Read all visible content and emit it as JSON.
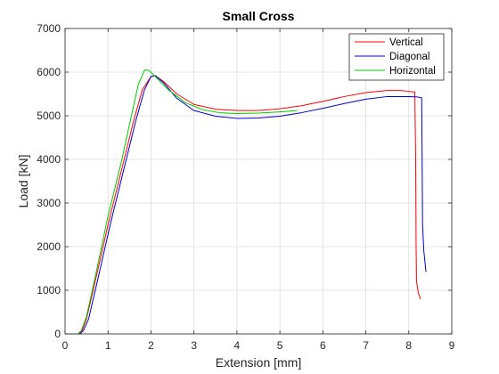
{
  "chart_data": {
    "type": "line",
    "title": "Small Cross",
    "xlabel": "Extension [mm]",
    "ylabel": "Load [kN]",
    "xlim": [
      0,
      9
    ],
    "ylim": [
      0,
      7000
    ],
    "xticks": [
      "0",
      "1",
      "2",
      "3",
      "4",
      "5",
      "6",
      "7",
      "8",
      "9"
    ],
    "yticks": [
      "0",
      "1000",
      "2000",
      "3000",
      "4000",
      "5000",
      "6000",
      "7000"
    ],
    "grid": true,
    "legend_position": "top-right",
    "series": [
      {
        "name": "Vertical",
        "color": "#ff0000",
        "points": [
          [
            0,
            0
          ],
          [
            0.32,
            0
          ],
          [
            0.4,
            80
          ],
          [
            0.5,
            350
          ],
          [
            0.7,
            1200
          ],
          [
            1.0,
            2500
          ],
          [
            1.3,
            3700
          ],
          [
            1.6,
            4900
          ],
          [
            1.8,
            5600
          ],
          [
            2.0,
            5900
          ],
          [
            2.1,
            5920
          ],
          [
            2.3,
            5780
          ],
          [
            2.6,
            5500
          ],
          [
            3.0,
            5260
          ],
          [
            3.5,
            5150
          ],
          [
            4.0,
            5120
          ],
          [
            4.5,
            5120
          ],
          [
            5.0,
            5160
          ],
          [
            5.5,
            5230
          ],
          [
            6.0,
            5330
          ],
          [
            6.5,
            5440
          ],
          [
            7.0,
            5530
          ],
          [
            7.5,
            5580
          ],
          [
            7.8,
            5580
          ],
          [
            8.0,
            5560
          ],
          [
            8.14,
            5540
          ],
          [
            8.16,
            4000
          ],
          [
            8.17,
            2000
          ],
          [
            8.18,
            1200
          ],
          [
            8.22,
            950
          ],
          [
            8.27,
            800
          ]
        ]
      },
      {
        "name": "Diagonal",
        "color": "#0000cc",
        "points": [
          [
            0,
            0
          ],
          [
            0.35,
            0
          ],
          [
            0.43,
            80
          ],
          [
            0.55,
            350
          ],
          [
            0.75,
            1200
          ],
          [
            1.05,
            2500
          ],
          [
            1.35,
            3700
          ],
          [
            1.65,
            4900
          ],
          [
            1.85,
            5600
          ],
          [
            2.0,
            5900
          ],
          [
            2.1,
            5920
          ],
          [
            2.3,
            5750
          ],
          [
            2.6,
            5400
          ],
          [
            3.0,
            5120
          ],
          [
            3.5,
            4990
          ],
          [
            4.0,
            4940
          ],
          [
            4.5,
            4950
          ],
          [
            5.0,
            4990
          ],
          [
            5.5,
            5070
          ],
          [
            6.0,
            5170
          ],
          [
            6.5,
            5280
          ],
          [
            7.0,
            5380
          ],
          [
            7.5,
            5440
          ],
          [
            8.0,
            5440
          ],
          [
            8.2,
            5430
          ],
          [
            8.3,
            5410
          ],
          [
            8.31,
            4000
          ],
          [
            8.32,
            2500
          ],
          [
            8.35,
            1900
          ],
          [
            8.4,
            1420
          ]
        ]
      },
      {
        "name": "Horizontal",
        "color": "#00cc00",
        "points": [
          [
            0,
            0
          ],
          [
            0.3,
            0
          ],
          [
            0.38,
            80
          ],
          [
            0.5,
            400
          ],
          [
            0.7,
            1300
          ],
          [
            1.0,
            2700
          ],
          [
            1.3,
            3900
          ],
          [
            1.5,
            4800
          ],
          [
            1.7,
            5700
          ],
          [
            1.85,
            6050
          ],
          [
            1.95,
            6040
          ],
          [
            2.1,
            5900
          ],
          [
            2.4,
            5600
          ],
          [
            2.8,
            5300
          ],
          [
            3.2,
            5140
          ],
          [
            3.6,
            5070
          ],
          [
            4.0,
            5050
          ],
          [
            4.5,
            5060
          ],
          [
            5.0,
            5090
          ],
          [
            5.4,
            5120
          ]
        ]
      }
    ]
  }
}
